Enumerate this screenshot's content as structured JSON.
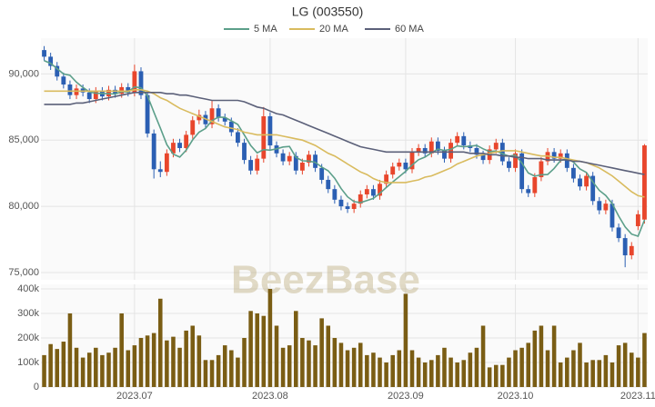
{
  "chart_data": {
    "type": "candlestick",
    "title": "LG (003550)",
    "watermark": "BeezBase",
    "categories": [
      null,
      null,
      null,
      null,
      null,
      null,
      null,
      null,
      null,
      null,
      null,
      null,
      null,
      null,
      "2023.07",
      null,
      null,
      null,
      null,
      null,
      null,
      null,
      null,
      null,
      null,
      null,
      null,
      null,
      null,
      null,
      null,
      null,
      null,
      null,
      null,
      "2023.08",
      null,
      null,
      null,
      null,
      null,
      null,
      null,
      null,
      null,
      null,
      null,
      null,
      null,
      null,
      null,
      null,
      null,
      null,
      null,
      null,
      "2023.09",
      null,
      null,
      null,
      null,
      null,
      null,
      null,
      null,
      null,
      null,
      null,
      null,
      null,
      null,
      null,
      null,
      "2023.10",
      null,
      null,
      null,
      null,
      null,
      null,
      null,
      null,
      null,
      null,
      null,
      null,
      null,
      null,
      null,
      null,
      null,
      null,
      "2023.11",
      null
    ],
    "open": [
      91800,
      91300,
      90600,
      89800,
      89200,
      88400,
      88900,
      88600,
      88100,
      88700,
      88300,
      88800,
      88500,
      89000,
      88600,
      90200,
      88400,
      85500,
      82800,
      82600,
      84000,
      84800,
      84400,
      85400,
      86500,
      86900,
      86200,
      87400,
      86700,
      86400,
      85600,
      84800,
      83500,
      82700,
      83600,
      86800,
      84600,
      84000,
      83400,
      83800,
      82700,
      83300,
      83900,
      82900,
      82000,
      81300,
      80500,
      80000,
      79800,
      80200,
      80900,
      81300,
      80800,
      81700,
      82400,
      83000,
      83300,
      82800,
      84100,
      84400,
      84000,
      84900,
      84200,
      83600,
      84800,
      85300,
      84600,
      84400,
      83900,
      83500,
      84300,
      84800,
      83400,
      82900,
      84000,
      81300,
      81000,
      82200,
      83400,
      84100,
      83600,
      84000,
      82900,
      82100,
      81500,
      82300,
      80400,
      79700,
      80200,
      78400,
      77600,
      76300,
      78500,
      79000
    ],
    "high": [
      92100,
      91600,
      90900,
      90100,
      89500,
      89200,
      89200,
      88900,
      89000,
      89000,
      89100,
      89100,
      89300,
      89300,
      90700,
      90500,
      88700,
      85800,
      83400,
      84300,
      85100,
      85100,
      85700,
      86800,
      87300,
      87200,
      88000,
      87700,
      87000,
      86700,
      85900,
      85100,
      83800,
      83900,
      87500,
      87100,
      84900,
      84300,
      84100,
      84100,
      83600,
      84200,
      84200,
      83200,
      82300,
      81600,
      80800,
      80300,
      80500,
      81200,
      81600,
      81600,
      82000,
      82700,
      83300,
      83600,
      83600,
      84400,
      84700,
      84700,
      85200,
      85200,
      84500,
      85100,
      85600,
      85600,
      84900,
      84700,
      84200,
      84600,
      85100,
      85100,
      83700,
      84300,
      84300,
      81600,
      82500,
      83700,
      84400,
      84400,
      84300,
      84300,
      83200,
      82400,
      82600,
      82600,
      80700,
      80500,
      80500,
      78700,
      77900,
      77300,
      79700,
      84700
    ],
    "low": [
      91000,
      90300,
      89500,
      88900,
      88100,
      88100,
      88300,
      87800,
      87800,
      88000,
      88000,
      88200,
      88200,
      88300,
      88300,
      88100,
      85200,
      82100,
      82200,
      82300,
      83700,
      84100,
      84100,
      85100,
      86200,
      85900,
      85900,
      86400,
      86100,
      85300,
      84500,
      83200,
      82400,
      82400,
      83300,
      84300,
      83700,
      83100,
      83100,
      82400,
      82400,
      83000,
      82600,
      81700,
      81000,
      80200,
      79700,
      79500,
      79500,
      79900,
      80600,
      80500,
      80500,
      81400,
      82100,
      82700,
      82500,
      82500,
      83800,
      83700,
      83700,
      83900,
      83300,
      83300,
      84500,
      84300,
      84100,
      83600,
      83200,
      83200,
      84000,
      83100,
      82600,
      82600,
      81000,
      80700,
      80700,
      81900,
      83100,
      83300,
      83300,
      82600,
      81800,
      81200,
      81200,
      80100,
      79400,
      79400,
      78100,
      77300,
      75400,
      76000,
      78200,
      78700
    ],
    "close": [
      91300,
      90600,
      89800,
      89200,
      88400,
      88900,
      88600,
      88100,
      88700,
      88300,
      88800,
      88500,
      89000,
      88600,
      90200,
      88400,
      85500,
      82800,
      82600,
      84000,
      84800,
      84400,
      85400,
      86500,
      86900,
      86200,
      87400,
      86700,
      86400,
      85600,
      84800,
      83500,
      82700,
      83600,
      86800,
      84600,
      84000,
      83400,
      83800,
      82700,
      83300,
      83900,
      82900,
      82000,
      81300,
      80500,
      80000,
      79800,
      80200,
      80900,
      81300,
      80800,
      81700,
      82400,
      83000,
      83300,
      82800,
      84100,
      84400,
      84000,
      84900,
      84200,
      83600,
      84800,
      85300,
      84600,
      84400,
      83900,
      83500,
      84300,
      84800,
      83400,
      82900,
      84000,
      81300,
      81000,
      82200,
      83400,
      84100,
      83600,
      84000,
      82900,
      82100,
      81500,
      82300,
      80400,
      79700,
      80200,
      78400,
      77600,
      76300,
      77000,
      79400,
      84600
    ],
    "up_color": "#e8462c",
    "down_color": "#2b5fb3",
    "series": [
      {
        "name": "5 MA",
        "color": "#5c9f8a",
        "values": [
          91000,
          90800,
          90400,
          90000,
          89900,
          89380,
          88980,
          88640,
          88540,
          88520,
          88500,
          88480,
          88660,
          88640,
          89020,
          88940,
          88340,
          87100,
          85900,
          84660,
          83940,
          83720,
          84240,
          85020,
          85600,
          85880,
          86480,
          86740,
          86720,
          86460,
          86180,
          85400,
          84600,
          84040,
          84280,
          84240,
          84340,
          84480,
          84520,
          83700,
          83440,
          83420,
          83320,
          82960,
          82680,
          82120,
          81340,
          80720,
          80360,
          80280,
          80440,
          80600,
          80980,
          81420,
          81840,
          82240,
          82640,
          83120,
          83520,
          83720,
          84040,
          84320,
          84220,
          84300,
          84560,
          84500,
          84540,
          84600,
          84340,
          84140,
          84180,
          83980,
          83780,
          83880,
          83280,
          82520,
          82280,
          82380,
          82400,
          82860,
          83460,
          83600,
          83340,
          82820,
          82560,
          81840,
          81200,
          80820,
          80200,
          79260,
          78440,
          77900,
          77740,
          78980
        ]
      },
      {
        "name": "20 MA",
        "color": "#d9bb5e",
        "values": [
          88700,
          88700,
          88700,
          88700,
          88700,
          88700,
          88700,
          88700,
          88700,
          88700,
          88700,
          88700,
          88700,
          88700,
          88800,
          88800,
          88700,
          88500,
          88200,
          88000,
          87700,
          87400,
          87200,
          87000,
          86800,
          86600,
          86400,
          86200,
          86000,
          85900,
          85800,
          85600,
          85500,
          85400,
          85400,
          85400,
          85400,
          85300,
          85200,
          85100,
          85000,
          84800,
          84600,
          84300,
          84000,
          83800,
          83500,
          83200,
          82900,
          82600,
          82400,
          82100,
          81900,
          81800,
          81800,
          81800,
          81800,
          81900,
          82000,
          82200,
          82300,
          82500,
          82700,
          82900,
          83200,
          83400,
          83600,
          83800,
          83900,
          84000,
          84100,
          84200,
          84200,
          84200,
          84100,
          84000,
          83900,
          83800,
          83800,
          83700,
          83700,
          83600,
          83500,
          83400,
          83300,
          83100,
          82900,
          82600,
          82300,
          81900,
          81500,
          81100,
          80800,
          80700
        ]
      },
      {
        "name": "60 MA",
        "color": "#5b6079",
        "values": [
          87700,
          87700,
          87700,
          87700,
          87700,
          87800,
          87800,
          87900,
          88000,
          88100,
          88200,
          88300,
          88400,
          88500,
          88600,
          88600,
          88600,
          88600,
          88600,
          88500,
          88500,
          88400,
          88400,
          88300,
          88200,
          88100,
          88000,
          88000,
          88000,
          88000,
          88000,
          87900,
          87700,
          87500,
          87400,
          87200,
          87000,
          86900,
          86700,
          86500,
          86300,
          86100,
          85900,
          85700,
          85500,
          85300,
          85100,
          84900,
          84700,
          84500,
          84400,
          84300,
          84200,
          84100,
          84100,
          84100,
          84100,
          84100,
          84100,
          84100,
          84100,
          84100,
          84100,
          84100,
          84100,
          84100,
          84000,
          84000,
          84000,
          83900,
          83900,
          83800,
          83800,
          83700,
          83700,
          83600,
          83600,
          83600,
          83500,
          83500,
          83500,
          83500,
          83400,
          83400,
          83300,
          83200,
          83100,
          83000,
          82900,
          82800,
          82700,
          82600,
          82500,
          82400
        ]
      }
    ],
    "ylim": [
      74450,
      92700
    ],
    "yticks": [
      {
        "value": 75000,
        "label": "75,000"
      },
      {
        "value": 80000,
        "label": "80,000"
      },
      {
        "value": 85000,
        "label": "85,000"
      },
      {
        "value": 90000,
        "label": "90,000"
      }
    ],
    "grid": true,
    "volume": {
      "color": "#7a5d14",
      "values": [
        130000,
        175000,
        155000,
        185000,
        300000,
        160000,
        120000,
        140000,
        160000,
        130000,
        140000,
        160000,
        300000,
        150000,
        170000,
        200000,
        210000,
        220000,
        360000,
        190000,
        205000,
        160000,
        230000,
        250000,
        210000,
        110000,
        110000,
        130000,
        170000,
        150000,
        120000,
        200000,
        310000,
        300000,
        290000,
        400000,
        250000,
        160000,
        170000,
        310000,
        200000,
        190000,
        170000,
        280000,
        250000,
        200000,
        180000,
        150000,
        160000,
        180000,
        130000,
        140000,
        120000,
        100000,
        130000,
        150000,
        380000,
        150000,
        120000,
        100000,
        110000,
        130000,
        160000,
        120000,
        100000,
        110000,
        140000,
        160000,
        250000,
        80000,
        90000,
        90000,
        120000,
        150000,
        160000,
        180000,
        230000,
        250000,
        150000,
        250000,
        100000,
        120000,
        150000,
        180000,
        100000,
        110000,
        110000,
        130000,
        100000,
        170000,
        180000,
        140000,
        120000,
        220000
      ],
      "ylim": [
        0,
        418500
      ],
      "yticks": [
        0,
        {
          "value": 100000,
          "label": "100k"
        },
        {
          "value": 200000,
          "label": "200k"
        },
        {
          "value": 300000,
          "label": "300k"
        },
        {
          "value": 400000,
          "label": "400k"
        }
      ]
    }
  }
}
